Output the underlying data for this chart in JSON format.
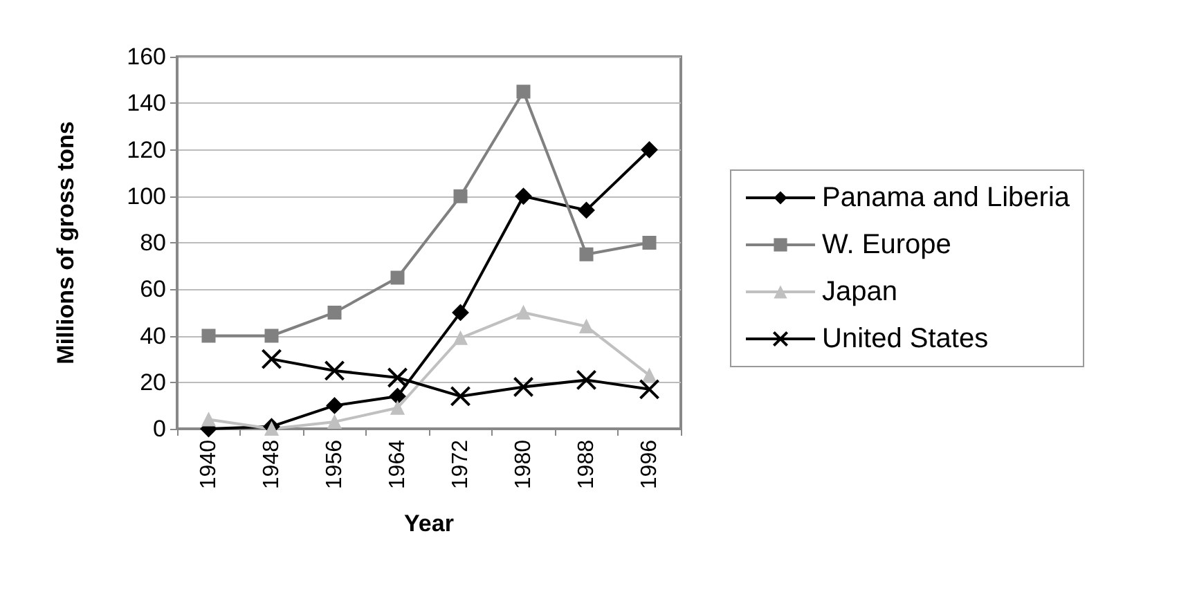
{
  "chart_data": {
    "type": "line",
    "xlabel": "Year",
    "ylabel": "Millions of gross tons",
    "categories": [
      "1940",
      "1948",
      "1956",
      "1964",
      "1972",
      "1980",
      "1988",
      "1996"
    ],
    "series": [
      {
        "name": "Panama and Liberia",
        "color": "#000000",
        "marker": "diamond",
        "values": [
          0,
          1,
          10,
          14,
          50,
          100,
          94,
          120
        ]
      },
      {
        "name": "W. Europe",
        "color": "#808080",
        "marker": "square",
        "values": [
          40,
          40,
          50,
          65,
          100,
          145,
          75,
          80
        ]
      },
      {
        "name": "Japan",
        "color": "#c0c0c0",
        "marker": "triangle",
        "values": [
          4,
          0,
          3,
          9,
          39,
          50,
          44,
          23
        ]
      },
      {
        "name": "United States",
        "color": "#000000",
        "marker": "cross",
        "values": [
          null,
          30,
          25,
          22,
          14,
          18,
          21,
          17
        ]
      }
    ],
    "ylim": [
      0,
      160
    ],
    "yticks": [
      0,
      20,
      40,
      60,
      80,
      100,
      120,
      140,
      160
    ],
    "grid": "y",
    "legend": "right"
  }
}
